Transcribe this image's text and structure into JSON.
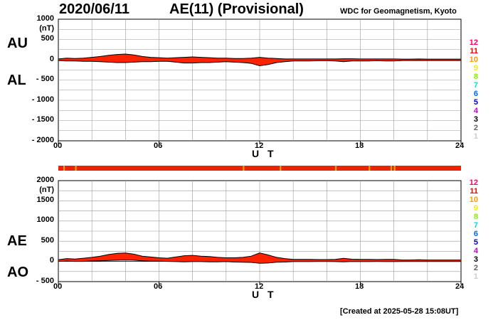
{
  "header": {
    "date": "2020/06/11",
    "title": "AE(11) (Provisional)",
    "source": "WDC for Geomagnetism, Kyoto"
  },
  "footer": {
    "created": "[Created at 2025-05-28 15:08UT]"
  },
  "colors": {
    "fill": "#ff2200",
    "outline": "#000000",
    "grid": "#9a9a9a",
    "qualityBar": "#ee2200"
  },
  "levels": {
    "labels": [
      "12",
      "11",
      "10",
      "9",
      "8",
      "7",
      "6",
      "5",
      "4",
      "3",
      "2",
      "1"
    ],
    "colors": [
      "#ff0066",
      "#ff0000",
      "#ff9900",
      "#eeee00",
      "#88ee00",
      "#00dddd",
      "#0066ff",
      "#0000cc",
      "#cc00cc",
      "#000000",
      "#666666",
      "#cccccc"
    ]
  },
  "quality_strip": {
    "base_color": "#ee2200",
    "marker_color": "#ffaa00",
    "marker_hours": [
      0.3,
      1.0,
      11.0,
      13.2,
      16.5,
      18.5,
      19.8,
      20.0
    ]
  },
  "chart_data": [
    {
      "type": "area",
      "panel": "AU/AL",
      "title": "AE(11) (Provisional)",
      "xlabel": "U T",
      "ylabel": "(nT)",
      "left_labels": [
        "AU",
        "AL"
      ],
      "xlim": [
        0,
        24
      ],
      "ylim": [
        -2000,
        1000
      ],
      "xticks": [
        "00",
        "06",
        "12",
        "18",
        "24"
      ],
      "xtick_values": [
        0,
        6,
        12,
        18,
        24
      ],
      "yticks": [
        "1000",
        "500",
        "0",
        "- 500",
        "- 1000",
        "- 1500",
        "- 2000"
      ],
      "ytick_values": [
        1000,
        500,
        0,
        -500,
        -1000,
        -1500,
        -2000
      ],
      "x": [
        0,
        0.5,
        1,
        1.5,
        2,
        2.5,
        3,
        3.5,
        4,
        4.5,
        5,
        5.5,
        6,
        6.5,
        7,
        7.5,
        8,
        8.5,
        9,
        9.5,
        10,
        10.5,
        11,
        11.5,
        12,
        12.5,
        13,
        13.5,
        14,
        14.5,
        15,
        15.5,
        16,
        16.5,
        17,
        17.5,
        18,
        18.5,
        19,
        19.5,
        20,
        20.5,
        21,
        21.5,
        22,
        22.5,
        23,
        23.5,
        24
      ],
      "series": [
        {
          "name": "AU",
          "values": [
            20,
            40,
            30,
            40,
            60,
            80,
            110,
            130,
            140,
            120,
            80,
            60,
            50,
            40,
            50,
            60,
            70,
            60,
            50,
            40,
            40,
            30,
            30,
            40,
            60,
            40,
            30,
            20,
            20,
            20,
            20,
            20,
            20,
            20,
            25,
            25,
            20,
            20,
            20,
            20,
            20,
            15,
            15,
            20,
            15,
            15,
            15,
            15,
            15
          ]
        },
        {
          "name": "AL",
          "values": [
            -20,
            -30,
            -30,
            -40,
            -40,
            -50,
            -60,
            -70,
            -70,
            -60,
            -50,
            -50,
            -40,
            -40,
            -60,
            -80,
            -80,
            -70,
            -70,
            -60,
            -50,
            -60,
            -70,
            -90,
            -150,
            -120,
            -70,
            -50,
            -30,
            -30,
            -30,
            -25,
            -25,
            -30,
            -50,
            -30,
            -30,
            -30,
            -25,
            -30,
            -30,
            -20,
            -20,
            -20,
            -20,
            -20,
            -20,
            -20,
            -20
          ]
        }
      ]
    },
    {
      "type": "area",
      "panel": "AE/AO",
      "xlabel": "U T",
      "ylabel": "(nT)",
      "left_labels": [
        "AE",
        "AO"
      ],
      "xlim": [
        0,
        24
      ],
      "ylim": [
        -500,
        2000
      ],
      "xticks": [
        "00",
        "06",
        "12",
        "18",
        "24"
      ],
      "xtick_values": [
        0,
        6,
        12,
        18,
        24
      ],
      "yticks": [
        "2000",
        "1500",
        "1000",
        "500",
        "0",
        "- 500"
      ],
      "ytick_values": [
        2000,
        1500,
        1000,
        500,
        0,
        -500
      ],
      "x": [
        0,
        0.5,
        1,
        1.5,
        2,
        2.5,
        3,
        3.5,
        4,
        4.5,
        5,
        5.5,
        6,
        6.5,
        7,
        7.5,
        8,
        8.5,
        9,
        9.5,
        10,
        10.5,
        11,
        11.5,
        12,
        12.5,
        13,
        13.5,
        14,
        14.5,
        15,
        15.5,
        16,
        16.5,
        17,
        17.5,
        18,
        18.5,
        19,
        19.5,
        20,
        20.5,
        21,
        21.5,
        22,
        22.5,
        23,
        23.5,
        24
      ],
      "series": [
        {
          "name": "AE",
          "values": [
            40,
            70,
            60,
            80,
            100,
            130,
            170,
            200,
            210,
            180,
            130,
            110,
            90,
            80,
            110,
            140,
            150,
            130,
            120,
            100,
            90,
            90,
            100,
            130,
            210,
            160,
            100,
            70,
            50,
            50,
            50,
            45,
            45,
            50,
            75,
            55,
            50,
            50,
            45,
            50,
            50,
            35,
            35,
            40,
            35,
            35,
            35,
            35,
            35
          ]
        },
        {
          "name": "AO",
          "values": [
            0,
            5,
            0,
            0,
            10,
            15,
            25,
            30,
            35,
            30,
            15,
            5,
            5,
            0,
            -5,
            -10,
            -5,
            -5,
            -10,
            -10,
            -5,
            -15,
            -20,
            -25,
            -45,
            -40,
            -20,
            -15,
            -5,
            -5,
            -5,
            -3,
            -3,
            -5,
            -12,
            -3,
            -5,
            -5,
            -3,
            -5,
            -5,
            -3,
            -3,
            0,
            -3,
            -3,
            -3,
            -3,
            -3
          ]
        }
      ]
    }
  ]
}
